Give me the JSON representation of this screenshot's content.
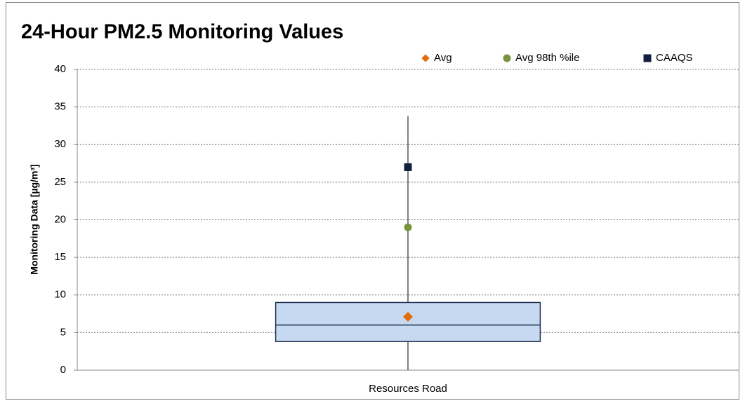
{
  "chart_data": {
    "type": "box",
    "title": "24-Hour PM2.5 Monitoring Values",
    "ylabel": "Monitoring Data [µg/m³]",
    "categories": [
      "Resources Road"
    ],
    "boxes": [
      {
        "min": 0,
        "q1": 3.8,
        "median": 6.0,
        "q3": 9.0,
        "max": 33.8
      }
    ],
    "box_color": "#c6d9f1",
    "box_edge": "#1f3050",
    "series": [
      {
        "name": "Avg",
        "color": "#e46c0a",
        "marker": "diamond",
        "values": [
          7.1
        ]
      },
      {
        "name": "Avg 98th %ile",
        "color": "#77933c",
        "marker": "circle",
        "values": [
          19.0
        ]
      },
      {
        "name": "CAAQS",
        "color": "#0f1f3d",
        "marker": "square",
        "values": [
          27.0
        ]
      }
    ],
    "ylim": [
      0,
      40
    ],
    "yticks": [
      0,
      5,
      10,
      15,
      20,
      25,
      30,
      35,
      40
    ],
    "grid": true,
    "legend": "top-right"
  }
}
